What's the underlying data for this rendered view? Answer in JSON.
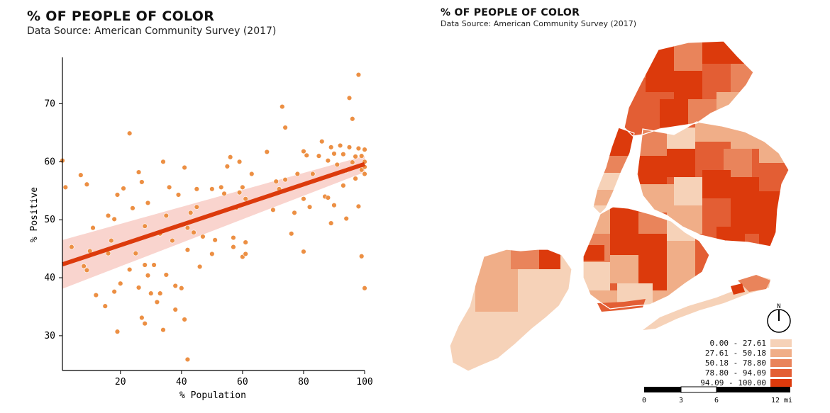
{
  "left_panel": {
    "title": "% OF PEOPLE OF COLOR",
    "subtitle": "Data Source: American Community Survey (2017)"
  },
  "right_panel": {
    "title": "% OF PEOPLE OF COLOR",
    "subtitle": "Data Source: American Community Survey (2017)"
  },
  "colors": {
    "point": "#ec8f43",
    "regression_line": "#dc3a0c",
    "confidence_band": "#f7c6bd",
    "map_borders": "#ffffff"
  },
  "chart_data": [
    {
      "type": "scatter",
      "xlabel": "% Population",
      "ylabel": "% Positive",
      "xlim": [
        1,
        100
      ],
      "ylim": [
        24,
        78
      ],
      "xticks": [
        20,
        40,
        60,
        80,
        100
      ],
      "yticks": [
        30,
        40,
        50,
        60,
        70
      ],
      "grid": false,
      "regression": {
        "x": [
          1,
          100
        ],
        "y": [
          42.3,
          59.6
        ],
        "ci": [
          4.2,
          1.4
        ]
      },
      "points": [
        {
          "x": 1,
          "y": 60.2
        },
        {
          "x": 2,
          "y": 55.6
        },
        {
          "x": 4,
          "y": 45.3
        },
        {
          "x": 7,
          "y": 57.7
        },
        {
          "x": 8,
          "y": 42
        },
        {
          "x": 9,
          "y": 41.3
        },
        {
          "x": 9,
          "y": 56.1
        },
        {
          "x": 10,
          "y": 44.6
        },
        {
          "x": 11,
          "y": 48.6
        },
        {
          "x": 12,
          "y": 37
        },
        {
          "x": 15,
          "y": 35.1
        },
        {
          "x": 16,
          "y": 44.2
        },
        {
          "x": 16,
          "y": 50.7
        },
        {
          "x": 17,
          "y": 46.4
        },
        {
          "x": 18,
          "y": 37.6
        },
        {
          "x": 18,
          "y": 50.1
        },
        {
          "x": 19,
          "y": 30.7
        },
        {
          "x": 19,
          "y": 54.3
        },
        {
          "x": 20,
          "y": 39
        },
        {
          "x": 21,
          "y": 55.4
        },
        {
          "x": 23,
          "y": 64.9
        },
        {
          "x": 23,
          "y": 41.4
        },
        {
          "x": 24,
          "y": 52
        },
        {
          "x": 25,
          "y": 44.2
        },
        {
          "x": 26,
          "y": 58.2
        },
        {
          "x": 26,
          "y": 38.3
        },
        {
          "x": 27,
          "y": 33.1
        },
        {
          "x": 27,
          "y": 56.5
        },
        {
          "x": 28,
          "y": 48.9
        },
        {
          "x": 28,
          "y": 32.1
        },
        {
          "x": 28,
          "y": 42.2
        },
        {
          "x": 29,
          "y": 40.4
        },
        {
          "x": 29,
          "y": 52.9
        },
        {
          "x": 30,
          "y": 37.3
        },
        {
          "x": 31,
          "y": 42.2
        },
        {
          "x": 32,
          "y": 35.8
        },
        {
          "x": 33,
          "y": 37.3
        },
        {
          "x": 33,
          "y": 47.6
        },
        {
          "x": 34,
          "y": 60
        },
        {
          "x": 34,
          "y": 31
        },
        {
          "x": 35,
          "y": 40.5
        },
        {
          "x": 35,
          "y": 50.7
        },
        {
          "x": 36,
          "y": 55.6
        },
        {
          "x": 37,
          "y": 46.4
        },
        {
          "x": 38,
          "y": 34.5
        },
        {
          "x": 38,
          "y": 38.6
        },
        {
          "x": 39,
          "y": 54.3
        },
        {
          "x": 40,
          "y": 38.2
        },
        {
          "x": 41,
          "y": 59
        },
        {
          "x": 41,
          "y": 32.8
        },
        {
          "x": 42,
          "y": 25.9
        },
        {
          "x": 42,
          "y": 44.8
        },
        {
          "x": 42,
          "y": 48.6
        },
        {
          "x": 43,
          "y": 51.2
        },
        {
          "x": 44,
          "y": 47.8
        },
        {
          "x": 45,
          "y": 55.3
        },
        {
          "x": 45,
          "y": 52.2
        },
        {
          "x": 46,
          "y": 41.9
        },
        {
          "x": 47,
          "y": 47.1
        },
        {
          "x": 50,
          "y": 55.3
        },
        {
          "x": 50,
          "y": 44.1
        },
        {
          "x": 51,
          "y": 46.5
        },
        {
          "x": 53,
          "y": 55.6
        },
        {
          "x": 54,
          "y": 54.5
        },
        {
          "x": 55,
          "y": 59.2
        },
        {
          "x": 56,
          "y": 60.8
        },
        {
          "x": 57,
          "y": 46.9
        },
        {
          "x": 57,
          "y": 45.3
        },
        {
          "x": 58,
          "y": 52.1
        },
        {
          "x": 59,
          "y": 60
        },
        {
          "x": 59,
          "y": 54.7
        },
        {
          "x": 60,
          "y": 43.6
        },
        {
          "x": 60,
          "y": 55.6
        },
        {
          "x": 61,
          "y": 44.1
        },
        {
          "x": 61,
          "y": 46.1
        },
        {
          "x": 61,
          "y": 53.6
        },
        {
          "x": 63,
          "y": 57.9
        },
        {
          "x": 68,
          "y": 61.7
        },
        {
          "x": 70,
          "y": 51.7
        },
        {
          "x": 71,
          "y": 56.6
        },
        {
          "x": 72,
          "y": 55.3
        },
        {
          "x": 73,
          "y": 69.5
        },
        {
          "x": 74,
          "y": 65.9
        },
        {
          "x": 74,
          "y": 56.9
        },
        {
          "x": 76,
          "y": 47.6
        },
        {
          "x": 77,
          "y": 51.2
        },
        {
          "x": 78,
          "y": 57.9
        },
        {
          "x": 80,
          "y": 44.5
        },
        {
          "x": 80,
          "y": 61.8
        },
        {
          "x": 80,
          "y": 53.6
        },
        {
          "x": 81,
          "y": 61.1
        },
        {
          "x": 82,
          "y": 52.2
        },
        {
          "x": 83,
          "y": 57.9
        },
        {
          "x": 85,
          "y": 61
        },
        {
          "x": 86,
          "y": 63.5
        },
        {
          "x": 87,
          "y": 54
        },
        {
          "x": 88,
          "y": 60.2
        },
        {
          "x": 88,
          "y": 53.8
        },
        {
          "x": 89,
          "y": 62.5
        },
        {
          "x": 89,
          "y": 49.4
        },
        {
          "x": 90,
          "y": 61.4
        },
        {
          "x": 90,
          "y": 52.5
        },
        {
          "x": 91,
          "y": 59.5
        },
        {
          "x": 92,
          "y": 62.8
        },
        {
          "x": 93,
          "y": 55.9
        },
        {
          "x": 93,
          "y": 61.3
        },
        {
          "x": 94,
          "y": 50.2
        },
        {
          "x": 94,
          "y": 58.5
        },
        {
          "x": 95,
          "y": 62.5
        },
        {
          "x": 95,
          "y": 71
        },
        {
          "x": 96,
          "y": 67.4
        },
        {
          "x": 96,
          "y": 59.9
        },
        {
          "x": 97,
          "y": 60.9
        },
        {
          "x": 97,
          "y": 57.1
        },
        {
          "x": 98,
          "y": 75
        },
        {
          "x": 98,
          "y": 62.3
        },
        {
          "x": 98,
          "y": 52.3
        },
        {
          "x": 99,
          "y": 43.7
        },
        {
          "x": 99,
          "y": 58.6
        },
        {
          "x": 99,
          "y": 61
        },
        {
          "x": 100,
          "y": 60
        },
        {
          "x": 100,
          "y": 62.1
        },
        {
          "x": 100,
          "y": 38.2
        },
        {
          "x": 100,
          "y": 57.9
        },
        {
          "x": 100,
          "y": 59.1
        }
      ]
    },
    {
      "type": "choropleth",
      "legend": {
        "placement": "bottom-right",
        "bins": [
          {
            "label": "0.00 - 27.61",
            "color": "#f6d2b8"
          },
          {
            "label": "27.61 - 50.18",
            "color": "#f0ae88"
          },
          {
            "label": "50.18 - 78.80",
            "color": "#e9845b"
          },
          {
            "label": "78.80 - 94.09",
            "color": "#e35e34"
          },
          {
            "label": "94.09 - 100.00",
            "color": "#dc3a0c"
          }
        ]
      },
      "north_label": "N",
      "scale_bar": {
        "labels": [
          "0",
          "3",
          "6",
          "12 mi"
        ]
      }
    }
  ]
}
